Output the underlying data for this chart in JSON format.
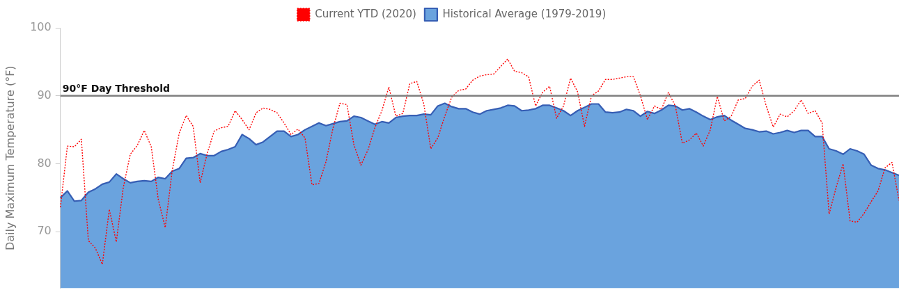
{
  "chart_data": {
    "type": "line",
    "ylabel": "Daily Maximum Temperature (°F)",
    "ylim": [
      61.7,
      100
    ],
    "yticks": [
      70,
      80,
      90,
      100
    ],
    "grid": false,
    "legend": "top",
    "marker": "none",
    "categories": [
      null,
      null,
      null,
      null,
      null,
      null,
      null,
      null,
      null,
      null,
      null,
      null,
      null,
      null,
      null,
      null,
      null,
      null,
      null,
      null,
      null,
      null,
      null,
      null,
      null,
      null,
      null,
      null,
      null,
      null,
      null,
      null,
      null,
      null,
      null,
      null,
      null,
      null,
      null,
      null,
      null,
      null,
      null,
      null,
      null,
      null,
      null,
      null,
      null,
      null,
      null,
      null,
      null,
      null,
      null,
      null,
      null,
      null,
      null,
      null,
      null,
      null,
      null,
      null,
      null,
      null,
      null,
      null,
      null,
      null,
      null,
      null,
      null,
      null,
      null,
      null,
      null,
      null,
      null,
      null,
      null,
      null,
      null,
      null,
      null,
      null,
      null,
      null,
      null,
      null,
      null,
      null,
      null,
      null,
      null,
      null,
      null,
      null,
      null,
      null,
      null,
      null,
      null,
      null,
      null,
      null,
      null,
      null,
      null,
      null,
      null,
      null,
      null,
      null,
      null,
      null,
      null,
      null,
      null,
      null,
      null
    ],
    "series": [
      {
        "name": "Current YTD (2020)",
        "type": "line",
        "line_style": "dotted",
        "color": "#ff0000",
        "values": [
          73.6,
          82.6,
          82.5,
          83.6,
          68.7,
          67.6,
          65.2,
          73.3,
          68.5,
          76.5,
          81.4,
          82.7,
          84.9,
          82.5,
          74.8,
          70.6,
          79,
          84.5,
          87.1,
          85.5,
          77.2,
          81.5,
          84.8,
          85.3,
          85.5,
          87.8,
          86.5,
          85,
          87.5,
          88.2,
          88,
          87.5,
          86,
          84.3,
          85.1,
          83.8,
          76.9,
          77.1,
          80.3,
          85.2,
          88.9,
          88.7,
          82.8,
          79.8,
          82,
          85.3,
          87.8,
          91.3,
          87,
          87.4,
          91.8,
          92.1,
          88.8,
          82.2,
          83.8,
          87,
          89.8,
          90.8,
          91,
          92.3,
          92.9,
          93.1,
          93.2,
          94.3,
          95.4,
          93.6,
          93.4,
          92.8,
          88.5,
          90.5,
          91.4,
          86.7,
          88.5,
          92.6,
          90.6,
          85.5,
          90,
          90.7,
          92.4,
          92.4,
          92.6,
          92.8,
          92.8,
          90,
          86.5,
          88.5,
          88,
          90.5,
          88.5,
          83,
          83.5,
          84.5,
          82.6,
          85,
          89.9,
          86.3,
          87,
          89.4,
          89.6,
          91.4,
          92.3,
          88.5,
          85.4,
          87.3,
          86.9,
          87.8,
          89.4,
          87.4,
          87.8,
          86,
          72.6,
          76.5,
          80,
          71.6,
          71.4,
          72.7,
          74.4,
          76,
          79.4,
          80.2,
          74.6
        ]
      },
      {
        "name": "Historical Average (1979-2019)",
        "type": "area",
        "line_style": "solid",
        "color": "#6aa3de",
        "values": [
          75.0,
          76.0,
          74.5,
          74.6,
          75.8,
          76.3,
          77.0,
          77.3,
          78.5,
          77.8,
          77.2,
          77.4,
          77.5,
          77.4,
          78.0,
          77.8,
          78.9,
          79.3,
          80.8,
          80.9,
          81.5,
          81.2,
          81.2,
          81.8,
          82.1,
          82.5,
          84.3,
          83.7,
          82.8,
          83.2,
          84.0,
          84.8,
          84.8,
          84.0,
          84.3,
          85.0,
          85.5,
          86.0,
          85.6,
          85.9,
          86.2,
          86.3,
          87.0,
          86.8,
          86.3,
          85.8,
          86.2,
          86.0,
          86.8,
          87.0,
          87.1,
          87.1,
          87.3,
          87.2,
          88.5,
          88.9,
          88.4,
          88.1,
          88.1,
          87.6,
          87.3,
          87.8,
          88.0,
          88.2,
          88.6,
          88.5,
          87.8,
          87.9,
          88.1,
          88.6,
          88.6,
          88.2,
          87.8,
          87.1,
          87.8,
          88.3,
          88.8,
          88.8,
          87.6,
          87.5,
          87.6,
          88.0,
          87.8,
          87.0,
          87.7,
          87.4,
          87.9,
          88.6,
          88.5,
          87.9,
          88.1,
          87.6,
          87.0,
          86.5,
          86.9,
          87.1,
          86.4,
          85.8,
          85.2,
          85.0,
          84.7,
          84.8,
          84.4,
          84.6,
          84.9,
          84.6,
          84.9,
          84.9,
          84.0,
          84.0,
          82.2,
          81.9,
          81.4,
          82.2,
          81.9,
          81.4,
          79.8,
          79.3,
          79.1,
          78.7,
          78.3
        ]
      }
    ],
    "ref_lines": [
      {
        "axis": "y",
        "value": 90,
        "label": "90°F Day Threshold",
        "color": "#808080",
        "line_style": "solid"
      }
    ]
  }
}
